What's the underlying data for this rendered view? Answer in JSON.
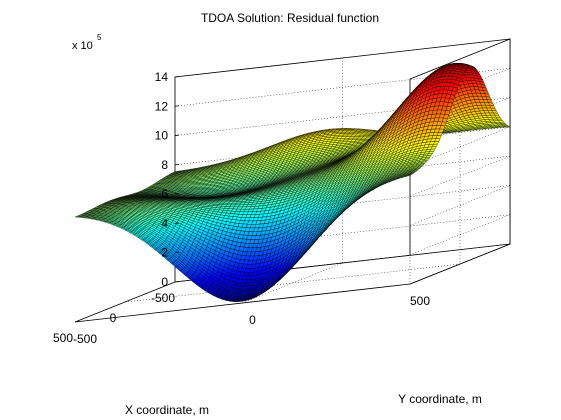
{
  "figure": {
    "title": "TDOA Solution: Residual function",
    "z_exponent_label": "x 10",
    "z_exponent_power": "5"
  },
  "chart_data": {
    "type": "surface",
    "title": "TDOA Solution: Residual function",
    "xlabel": "X coordinate, m",
    "ylabel": "Y coordinate, m",
    "zlabel": "",
    "xlim": [
      -500,
      500
    ],
    "ylim": [
      -500,
      500
    ],
    "zlim": [
      0,
      14
    ],
    "z_scale": 100000,
    "xticks": [
      "-500",
      "0",
      "500"
    ],
    "yticks": [
      "-500",
      "0",
      "500"
    ],
    "zticks": [
      "0",
      "2",
      "4",
      "6",
      "8",
      "10",
      "12",
      "14"
    ],
    "grid": true,
    "box": "back-planes",
    "colormap": "jet",
    "grid_resolution": 81,
    "corner_values_x1e5": {
      "x-500_y-500": 7.5,
      "x500_y-500": 6.5,
      "x-500_y500": 11.5,
      "x500_y500": 7.2
    },
    "features_x1e5": {
      "global_minimum": {
        "x": 500,
        "y": 0,
        "z": 0
      },
      "ridge_peak": {
        "x": -100,
        "y": 430,
        "z": 13.8
      },
      "secondary_hump": {
        "x": -500,
        "y": -40,
        "z": 9.5
      }
    }
  }
}
